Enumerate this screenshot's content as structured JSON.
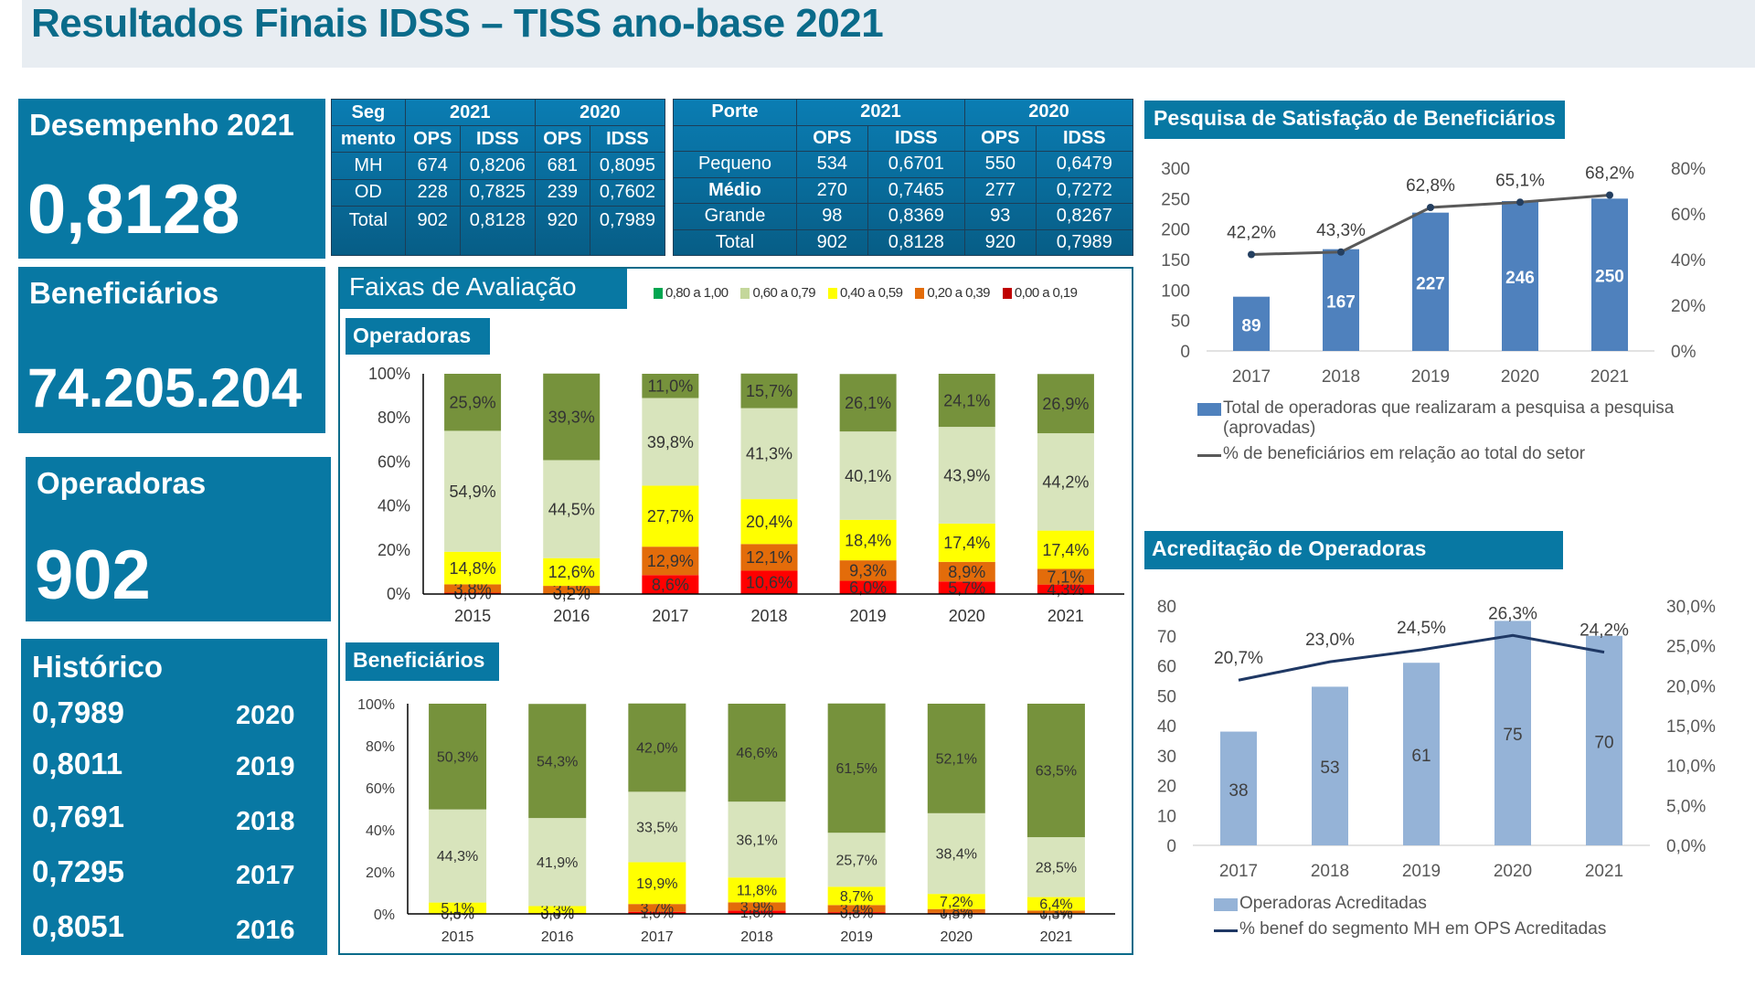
{
  "title": "Resultados Finais IDSS – TISS ano-base 2021",
  "kpis": {
    "desempenho": {
      "label": "Desempenho 2021",
      "value": "0,8128"
    },
    "beneficiarios": {
      "label": "Beneficiários",
      "value": "74.205.204"
    },
    "operadoras": {
      "label": "Operadoras",
      "value": "902"
    },
    "historico": {
      "label": "Histórico",
      "rows": [
        {
          "value": "0,7989",
          "year": "2020"
        },
        {
          "value": "0,8011",
          "year": "2019"
        },
        {
          "value": "0,7691",
          "year": "2018"
        },
        {
          "value": "0,7295",
          "year": "2017"
        },
        {
          "value": "0,8051",
          "year": "2016"
        }
      ]
    }
  },
  "table_segmento": {
    "header_seg_1": "Seg",
    "header_seg_2": "mento",
    "year_2021": "2021",
    "year_2020": "2020",
    "col_ops": "OPS",
    "col_idss": "IDSS",
    "rows": [
      {
        "seg": "MH",
        "ops21": "674",
        "idss21": "0,8206",
        "ops20": "681",
        "idss20": "0,8095"
      },
      {
        "seg": "OD",
        "ops21": "228",
        "idss21": "0,7825",
        "ops20": "239",
        "idss20": "0,7602"
      },
      {
        "seg": "Total",
        "ops21": "902",
        "idss21": "0,8128",
        "ops20": "920",
        "idss20": "0,7989"
      }
    ]
  },
  "table_porte": {
    "header_porte": "Porte",
    "year_2021": "2021",
    "year_2020": "2020",
    "col_ops": "OPS",
    "col_idss": "IDSS",
    "rows": [
      {
        "porte": "Pequeno",
        "ops21": "534",
        "idss21": "0,6701",
        "ops20": "550",
        "idss20": "0,6479"
      },
      {
        "porte": "Médio",
        "ops21": "270",
        "idss21": "0,7465",
        "ops20": "277",
        "idss20": "0,7272"
      },
      {
        "porte": "Grande",
        "ops21": "98",
        "idss21": "0,8369",
        "ops20": "93",
        "idss20": "0,8267"
      },
      {
        "porte": "Total",
        "ops21": "902",
        "idss21": "0,8128",
        "ops20": "920",
        "idss20": "0,7989"
      }
    ]
  },
  "faixas": {
    "title": "Faixas de Avaliação",
    "legend": [
      {
        "label": "0,80 a 1,00",
        "color": "#00a650"
      },
      {
        "label": "0,60 a 0,79",
        "color": "#c4d79b"
      },
      {
        "label": "0,40 a 0,59",
        "color": "#ffff00"
      },
      {
        "label": "0,20 a 0,39",
        "color": "#e36c0a"
      },
      {
        "label": "0,00 a 0,19",
        "color": "#c00000"
      }
    ],
    "operadoras_label": "Operadoras",
    "beneficiarios_label": "Beneficiários"
  },
  "chart_data": [
    {
      "id": "operadoras",
      "type": "bar",
      "stacked": true,
      "percent": true,
      "title": "Operadoras",
      "categories": [
        "2015",
        "2016",
        "2017",
        "2018",
        "2019",
        "2020",
        "2021"
      ],
      "yticks": [
        "0%",
        "20%",
        "40%",
        "60%",
        "80%",
        "100%"
      ],
      "ylim": [
        0,
        100
      ],
      "series": [
        {
          "name": "0,00 a 0,19",
          "color": "#ff0000",
          "values": [
            0.6,
            0.2,
            8.6,
            10.6,
            6.0,
            5.7,
            4.3
          ]
        },
        {
          "name": "0,20 a 0,39",
          "color": "#e36c0a",
          "values": [
            3.8,
            3.5,
            12.9,
            12.1,
            9.3,
            8.9,
            7.1
          ]
        },
        {
          "name": "0,40 a 0,59",
          "color": "#ffff00",
          "values": [
            14.8,
            12.6,
            27.7,
            20.4,
            18.4,
            17.4,
            17.4
          ]
        },
        {
          "name": "0,60 a 0,79",
          "color": "#d8e4bc",
          "values": [
            54.9,
            44.5,
            39.8,
            41.3,
            40.1,
            43.9,
            44.2
          ]
        },
        {
          "name": "0,80 a 1,00",
          "color": "#76923c",
          "values": [
            25.9,
            39.3,
            11.0,
            15.7,
            26.1,
            24.1,
            26.9
          ]
        }
      ]
    },
    {
      "id": "beneficiarios",
      "type": "bar",
      "stacked": true,
      "percent": true,
      "title": "Beneficiários",
      "categories": [
        "2015",
        "2016",
        "2017",
        "2018",
        "2019",
        "2020",
        "2021"
      ],
      "yticks": [
        "0%",
        "20%",
        "40%",
        "60%",
        "80%",
        "100%"
      ],
      "ylim": [
        0,
        100
      ],
      "series": [
        {
          "name": "0,00 a 0,19",
          "color": "#ff0000",
          "values": [
            0.0,
            0.0,
            1.0,
            1.6,
            0.8,
            0.5,
            0.3
          ]
        },
        {
          "name": "0,20 a 0,39",
          "color": "#e36c0a",
          "values": [
            0.3,
            0.4,
            3.7,
            3.9,
            3.4,
            1.8,
            1.3
          ]
        },
        {
          "name": "0,40 a 0,59",
          "color": "#ffff00",
          "values": [
            5.1,
            3.3,
            19.9,
            11.8,
            8.7,
            7.2,
            6.4
          ]
        },
        {
          "name": "0,60 a 0,79",
          "color": "#d8e4bc",
          "values": [
            44.3,
            41.9,
            33.5,
            36.1,
            25.7,
            38.4,
            28.5
          ]
        },
        {
          "name": "0,80 a 1,00",
          "color": "#76923c",
          "values": [
            50.3,
            54.3,
            42.0,
            46.6,
            61.5,
            52.1,
            63.5
          ]
        }
      ]
    },
    {
      "id": "satisfacao",
      "type": "bar",
      "combo_line": true,
      "title": "Pesquisa de Satisfação de Beneficiários",
      "categories": [
        "2017",
        "2018",
        "2019",
        "2020",
        "2021"
      ],
      "ylim": [
        0,
        300
      ],
      "yticks": [
        "0",
        "50",
        "100",
        "150",
        "200",
        "250",
        "300"
      ],
      "y2lim": [
        0,
        80
      ],
      "y2ticks": [
        "0%",
        "20%",
        "40%",
        "60%",
        "80%"
      ],
      "series": [
        {
          "name": "Total de operadoras que realizaram a pesquisa a pesquisa (aprovadas)",
          "type": "bar",
          "color": "#4f81bd",
          "values": [
            89,
            167,
            227,
            246,
            250
          ],
          "labels": [
            "89",
            "167",
            "227",
            "246",
            "250"
          ]
        },
        {
          "name": "% de beneficiários em relação ao total do setor",
          "type": "line",
          "axis": "y2",
          "color": "#595959",
          "values": [
            42.2,
            43.3,
            62.8,
            65.1,
            68.2
          ],
          "labels": [
            "42,2%",
            "43,3%",
            "62,8%",
            "65,1%",
            "68,2%"
          ]
        }
      ],
      "legend": "bottom"
    },
    {
      "id": "acreditacao",
      "type": "bar",
      "combo_line": true,
      "title": "Acreditação de Operadoras",
      "categories": [
        "2017",
        "2018",
        "2019",
        "2020",
        "2021"
      ],
      "ylim": [
        0,
        80
      ],
      "yticks": [
        "0",
        "10",
        "20",
        "30",
        "40",
        "50",
        "60",
        "70",
        "80"
      ],
      "y2lim": [
        0,
        30
      ],
      "y2ticks": [
        "0,0%",
        "5,0%",
        "10,0%",
        "15,0%",
        "20,0%",
        "25,0%",
        "30,0%"
      ],
      "series": [
        {
          "name": "Operadoras Acreditadas",
          "type": "bar",
          "color": "#95b3d7",
          "values": [
            38,
            53,
            61,
            75,
            70
          ],
          "labels": [
            "38",
            "53",
            "61",
            "75",
            "70"
          ]
        },
        {
          "name": "% benef do segmento MH em OPS Acreditadas",
          "type": "line",
          "axis": "y2",
          "color": "#1f3864",
          "values": [
            20.7,
            23.0,
            24.5,
            26.3,
            24.2
          ],
          "labels": [
            "20,7%",
            "23,0%",
            "24,5%",
            "26,3%",
            "24,2%"
          ]
        }
      ],
      "legend": "bottom"
    }
  ]
}
